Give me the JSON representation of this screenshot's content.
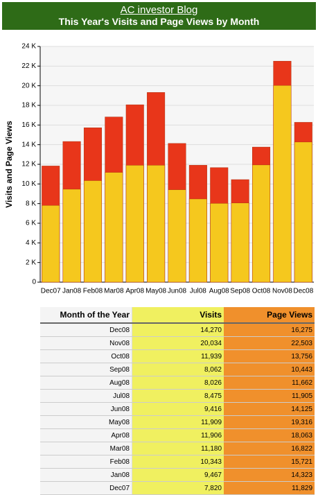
{
  "chart_data": {
    "type": "bar",
    "title": "AC investor Blog",
    "subtitle": "This Year's Visits and Page Views by Month",
    "y_label": "Visits and Page Views",
    "categories": [
      "Dec07",
      "Jan08",
      "Feb08",
      "Mar08",
      "Apr08",
      "May08",
      "Jun08",
      "Jul08",
      "Aug08",
      "Sep08",
      "Oct08",
      "Nov08",
      "Dec08"
    ],
    "series": [
      {
        "name": "Page Views",
        "color": "#e8361a",
        "values": [
          11829,
          14323,
          15721,
          16822,
          18063,
          19316,
          14125,
          11905,
          11662,
          10443,
          13756,
          22503,
          16275
        ]
      },
      {
        "name": "Visits",
        "color": "#f5c81e",
        "values": [
          7820,
          9467,
          10343,
          11180,
          11906,
          11909,
          9416,
          8475,
          8026,
          8062,
          11939,
          20034,
          14270
        ]
      }
    ],
    "ylim": [
      0,
      24000
    ],
    "yticks": [
      0,
      {
        "value": 2000,
        "label": "2 K"
      },
      {
        "value": 4000,
        "label": "4 K"
      },
      {
        "value": 6000,
        "label": "6 K"
      },
      {
        "value": 8000,
        "label": "8 K"
      },
      {
        "value": 10000,
        "label": "10 K"
      },
      {
        "value": 12000,
        "label": "12 K"
      },
      {
        "value": 14000,
        "label": "14 K"
      },
      {
        "value": 16000,
        "label": "16 K"
      },
      {
        "value": 18000,
        "label": "18 K"
      },
      {
        "value": 20000,
        "label": "20 K"
      },
      {
        "value": 22000,
        "label": "22 K"
      },
      {
        "value": 24000,
        "label": "24 K"
      }
    ],
    "grid": true
  },
  "table": {
    "header": [
      "Month of the Year",
      "Visits",
      "Page Views"
    ],
    "rows": [
      [
        "Dec08",
        "14,270",
        "16,275"
      ],
      [
        "Nov08",
        "20,034",
        "22,503"
      ],
      [
        "Oct08",
        "11,939",
        "13,756"
      ],
      [
        "Sep08",
        "8,062",
        "10,443"
      ],
      [
        "Aug08",
        "8,026",
        "11,662"
      ],
      [
        "Jul08",
        "8,475",
        "11,905"
      ],
      [
        "Jun08",
        "9,416",
        "14,125"
      ],
      [
        "May08",
        "11,909",
        "19,316"
      ],
      [
        "Apr08",
        "11,906",
        "18,063"
      ],
      [
        "Mar08",
        "11,180",
        "16,822"
      ],
      [
        "Feb08",
        "10,343",
        "15,721"
      ],
      [
        "Jan08",
        "9,467",
        "14,323"
      ],
      [
        "Dec07",
        "7,820",
        "11,829"
      ]
    ]
  }
}
